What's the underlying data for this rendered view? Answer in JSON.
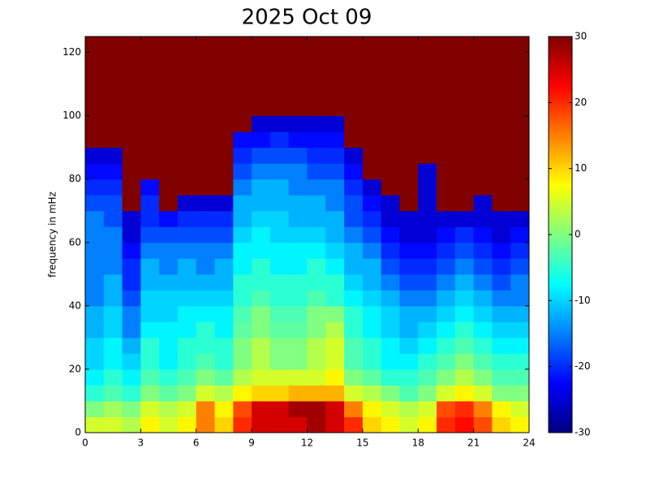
{
  "chart_data": {
    "type": "heatmap",
    "title": "2025 Oct 09",
    "y_label": "frequency in mHz",
    "colormap": "jet",
    "xbins": [
      0,
      1,
      2,
      3,
      4,
      5,
      6,
      7,
      8,
      9,
      10,
      11,
      12,
      13,
      14,
      15,
      16,
      17,
      18,
      19,
      20,
      21,
      22,
      23,
      24
    ],
    "ybins": [
      0,
      5,
      10,
      15,
      20,
      25,
      30,
      35,
      40,
      45,
      50,
      55,
      60,
      65,
      70,
      75,
      80,
      85,
      90,
      95,
      100,
      105,
      110,
      115,
      120,
      125
    ],
    "z": [
      [
        5,
        5,
        3,
        8,
        5,
        8,
        15,
        10,
        20,
        25,
        25,
        25,
        28,
        25,
        20,
        10,
        8,
        5,
        8,
        20,
        22,
        18,
        10,
        8
      ],
      [
        0,
        2,
        0,
        5,
        3,
        5,
        15,
        8,
        18,
        25,
        25,
        28,
        28,
        25,
        15,
        8,
        5,
        3,
        5,
        18,
        20,
        15,
        8,
        5
      ],
      [
        -5,
        -3,
        -5,
        0,
        -2,
        0,
        5,
        3,
        8,
        10,
        10,
        12,
        12,
        12,
        5,
        3,
        0,
        -3,
        0,
        5,
        8,
        5,
        0,
        0
      ],
      [
        -8,
        -5,
        -8,
        -3,
        -5,
        -3,
        0,
        -2,
        3,
        5,
        5,
        5,
        5,
        8,
        0,
        -2,
        -5,
        -5,
        -3,
        0,
        3,
        0,
        -3,
        -3
      ],
      [
        -10,
        -8,
        -10,
        -5,
        -8,
        -5,
        -3,
        -5,
        0,
        3,
        0,
        0,
        3,
        5,
        -3,
        -5,
        -8,
        -8,
        -5,
        -3,
        0,
        -3,
        -5,
        -5
      ],
      [
        -10,
        -8,
        -12,
        -5,
        -8,
        -5,
        -5,
        -5,
        0,
        3,
        0,
        0,
        3,
        5,
        -3,
        -5,
        -8,
        -10,
        -8,
        -5,
        -3,
        -5,
        -8,
        -8
      ],
      [
        -12,
        -10,
        -15,
        -8,
        -8,
        -8,
        -5,
        -8,
        -2,
        0,
        -2,
        -2,
        0,
        3,
        -5,
        -8,
        -10,
        -12,
        -10,
        -8,
        -5,
        -8,
        -10,
        -10
      ],
      [
        -12,
        -10,
        -15,
        -10,
        -10,
        -8,
        -8,
        -8,
        -3,
        0,
        -3,
        -3,
        0,
        0,
        -5,
        -8,
        -10,
        -12,
        -12,
        -10,
        -8,
        -10,
        -12,
        -12
      ],
      [
        -15,
        -12,
        -18,
        -10,
        -10,
        -10,
        -10,
        -10,
        -5,
        -3,
        -5,
        -5,
        -3,
        -5,
        -8,
        -10,
        -12,
        -15,
        -15,
        -12,
        -10,
        -12,
        -15,
        -15
      ],
      [
        -15,
        -12,
        -20,
        -12,
        -12,
        -12,
        -12,
        -12,
        -5,
        -5,
        -5,
        -5,
        -5,
        -5,
        -10,
        -12,
        -15,
        -18,
        -18,
        -15,
        -12,
        -15,
        -18,
        -15
      ],
      [
        -15,
        -15,
        -20,
        -12,
        -15,
        -12,
        -15,
        -12,
        -8,
        -5,
        -8,
        -8,
        -5,
        -8,
        -12,
        -12,
        -18,
        -20,
        -20,
        -18,
        -15,
        -18,
        -20,
        -18
      ],
      [
        -15,
        -15,
        -22,
        -15,
        -15,
        -15,
        -15,
        -15,
        -8,
        -8,
        -8,
        -8,
        -8,
        -10,
        -12,
        -15,
        -20,
        -22,
        -22,
        -20,
        -18,
        -20,
        -22,
        -20
      ],
      [
        -15,
        -15,
        -25,
        -18,
        -18,
        -18,
        -18,
        -18,
        -10,
        -8,
        -10,
        -10,
        -10,
        -12,
        -15,
        -18,
        -22,
        -25,
        -25,
        -22,
        -20,
        -22,
        -25,
        -22
      ],
      [
        -15,
        -18,
        -25,
        -20,
        -22,
        -20,
        -20,
        -20,
        -12,
        -10,
        -10,
        -12,
        -12,
        -12,
        -18,
        -20,
        -25,
        -25,
        -25,
        -25,
        -25,
        -25,
        -25,
        -25
      ],
      [
        -18,
        -18,
        30,
        -20,
        30,
        -25,
        -25,
        -25,
        -12,
        -12,
        -12,
        -12,
        -12,
        -15,
        -18,
        -22,
        -25,
        30,
        -25,
        30,
        30,
        -25,
        30,
        30
      ],
      [
        -20,
        -20,
        30,
        -22,
        30,
        30,
        30,
        30,
        -15,
        -12,
        -12,
        -15,
        -15,
        -15,
        -20,
        -25,
        30,
        30,
        -25,
        30,
        30,
        30,
        30,
        30
      ],
      [
        -22,
        -22,
        30,
        30,
        30,
        30,
        30,
        30,
        -18,
        -15,
        -15,
        -15,
        -18,
        -18,
        -22,
        30,
        30,
        30,
        -25,
        30,
        30,
        30,
        30,
        30
      ],
      [
        -25,
        -25,
        30,
        30,
        30,
        30,
        30,
        30,
        -20,
        -18,
        -18,
        -18,
        -20,
        -20,
        -25,
        30,
        30,
        30,
        30,
        30,
        30,
        30,
        30,
        30
      ],
      [
        30,
        30,
        30,
        30,
        30,
        30,
        30,
        30,
        -22,
        -22,
        -20,
        -22,
        -22,
        -22,
        30,
        30,
        30,
        30,
        30,
        30,
        30,
        30,
        30,
        30
      ],
      [
        30,
        30,
        30,
        30,
        30,
        30,
        30,
        30,
        30,
        -25,
        -25,
        -25,
        -25,
        -25,
        30,
        30,
        30,
        30,
        30,
        30,
        30,
        30,
        30,
        30
      ],
      [
        30,
        30,
        30,
        30,
        30,
        30,
        30,
        30,
        30,
        30,
        30,
        30,
        30,
        30,
        30,
        30,
        30,
        30,
        30,
        30,
        30,
        30,
        30,
        30
      ],
      [
        30,
        30,
        30,
        30,
        30,
        30,
        30,
        30,
        30,
        30,
        30,
        30,
        30,
        30,
        30,
        30,
        30,
        30,
        30,
        30,
        30,
        30,
        30,
        30
      ],
      [
        30,
        30,
        30,
        30,
        30,
        30,
        30,
        30,
        30,
        30,
        30,
        30,
        30,
        30,
        30,
        30,
        30,
        30,
        30,
        30,
        30,
        30,
        30,
        30
      ],
      [
        30,
        30,
        30,
        30,
        30,
        30,
        30,
        30,
        30,
        30,
        30,
        30,
        30,
        30,
        30,
        30,
        30,
        30,
        30,
        30,
        30,
        30,
        30,
        30
      ],
      [
        30,
        30,
        30,
        30,
        30,
        30,
        30,
        30,
        30,
        30,
        30,
        30,
        30,
        30,
        30,
        30,
        30,
        30,
        30,
        30,
        30,
        30,
        30,
        30
      ]
    ],
    "xlim": [
      0,
      24
    ],
    "xticks": [
      0,
      3,
      6,
      9,
      12,
      15,
      18,
      21,
      24
    ],
    "ylim": [
      0,
      125
    ],
    "yticks": [
      0,
      20,
      40,
      60,
      80,
      100,
      120
    ],
    "clim": [
      -30,
      30
    ],
    "colorbar_ticks": [
      30,
      20,
      10,
      0,
      -10,
      -20,
      -30
    ]
  }
}
